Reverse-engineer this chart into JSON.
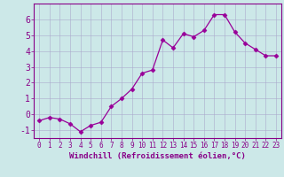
{
  "x": [
    0,
    1,
    2,
    3,
    4,
    5,
    6,
    7,
    8,
    9,
    10,
    11,
    12,
    13,
    14,
    15,
    16,
    17,
    18,
    19,
    20,
    21,
    22,
    23
  ],
  "y": [
    -0.4,
    -0.2,
    -0.3,
    -0.6,
    -1.1,
    -0.7,
    -0.5,
    0.5,
    1.0,
    1.6,
    2.6,
    2.8,
    4.7,
    4.2,
    5.1,
    4.9,
    5.3,
    6.3,
    6.3,
    5.2,
    4.5,
    4.1,
    3.7,
    3.7
  ],
  "line_color": "#990099",
  "marker": "D",
  "marker_size": 2.5,
  "bg_color": "#cce8e8",
  "grid_color": "#aaaacc",
  "xlabel": "Windchill (Refroidissement éolien,°C)",
  "xlim": [
    -0.5,
    23.5
  ],
  "ylim": [
    -1.5,
    7.0
  ],
  "yticks": [
    -1,
    0,
    1,
    2,
    3,
    4,
    5,
    6
  ],
  "xticks": [
    0,
    1,
    2,
    3,
    4,
    5,
    6,
    7,
    8,
    9,
    10,
    11,
    12,
    13,
    14,
    15,
    16,
    17,
    18,
    19,
    20,
    21,
    22,
    23
  ],
  "tick_color": "#880088",
  "label_color": "#880088",
  "axis_color": "#880088",
  "xlabel_fontsize": 6.5,
  "tick_fontsize": 5.5,
  "ytick_fontsize": 7.0
}
